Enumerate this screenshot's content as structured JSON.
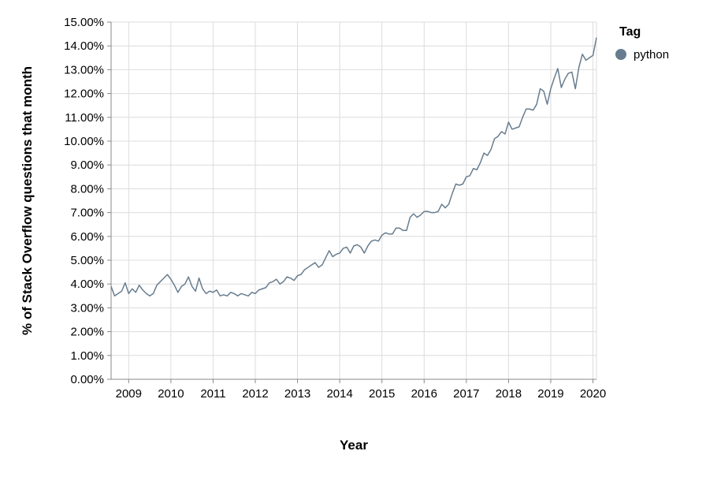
{
  "chart_data": {
    "type": "line",
    "title": "",
    "xlabel": "Year",
    "ylabel": "% of Stack Overflow questions that month",
    "x_ticks": [
      "2009",
      "2010",
      "2011",
      "2012",
      "2013",
      "2014",
      "2015",
      "2016",
      "2017",
      "2018",
      "2019",
      "2020"
    ],
    "y_ticks": [
      "0.00%",
      "1.00%",
      "2.00%",
      "3.00%",
      "4.00%",
      "5.00%",
      "6.00%",
      "7.00%",
      "8.00%",
      "9.00%",
      "10.00%",
      "11.00%",
      "12.00%",
      "13.00%",
      "14.00%",
      "15.00%"
    ],
    "xlim": [
      "2008-08",
      "2020-02"
    ],
    "ylim": [
      0,
      15
    ],
    "grid": true,
    "legend": {
      "title": "Tag",
      "position": "right"
    },
    "series": [
      {
        "name": "python",
        "color": "#677d8f",
        "points": [
          [
            "2008-08",
            3.9
          ],
          [
            "2008-09",
            3.5
          ],
          [
            "2008-10",
            3.6
          ],
          [
            "2008-11",
            3.7
          ],
          [
            "2008-12",
            4.05
          ],
          [
            "2009-01",
            3.6
          ],
          [
            "2009-02",
            3.8
          ],
          [
            "2009-03",
            3.65
          ],
          [
            "2009-04",
            3.95
          ],
          [
            "2009-05",
            3.75
          ],
          [
            "2009-06",
            3.6
          ],
          [
            "2009-07",
            3.5
          ],
          [
            "2009-08",
            3.6
          ],
          [
            "2009-09",
            3.95
          ],
          [
            "2009-10",
            4.1
          ],
          [
            "2009-11",
            4.25
          ],
          [
            "2009-12",
            4.4
          ],
          [
            "2010-01",
            4.2
          ],
          [
            "2010-02",
            3.95
          ],
          [
            "2010-03",
            3.65
          ],
          [
            "2010-04",
            3.9
          ],
          [
            "2010-05",
            4.0
          ],
          [
            "2010-06",
            4.3
          ],
          [
            "2010-07",
            3.9
          ],
          [
            "2010-08",
            3.7
          ],
          [
            "2010-09",
            4.25
          ],
          [
            "2010-10",
            3.8
          ],
          [
            "2010-11",
            3.6
          ],
          [
            "2010-12",
            3.7
          ],
          [
            "2011-01",
            3.65
          ],
          [
            "2011-02",
            3.75
          ],
          [
            "2011-03",
            3.5
          ],
          [
            "2011-04",
            3.55
          ],
          [
            "2011-05",
            3.5
          ],
          [
            "2011-06",
            3.65
          ],
          [
            "2011-07",
            3.6
          ],
          [
            "2011-08",
            3.5
          ],
          [
            "2011-09",
            3.6
          ],
          [
            "2011-10",
            3.55
          ],
          [
            "2011-11",
            3.5
          ],
          [
            "2011-12",
            3.65
          ],
          [
            "2012-01",
            3.6
          ],
          [
            "2012-02",
            3.75
          ],
          [
            "2012-03",
            3.8
          ],
          [
            "2012-04",
            3.85
          ],
          [
            "2012-05",
            4.05
          ],
          [
            "2012-06",
            4.1
          ],
          [
            "2012-07",
            4.2
          ],
          [
            "2012-08",
            4.0
          ],
          [
            "2012-09",
            4.1
          ],
          [
            "2012-10",
            4.3
          ],
          [
            "2012-11",
            4.25
          ],
          [
            "2012-12",
            4.15
          ],
          [
            "2013-01",
            4.35
          ],
          [
            "2013-02",
            4.4
          ],
          [
            "2013-03",
            4.6
          ],
          [
            "2013-04",
            4.7
          ],
          [
            "2013-05",
            4.8
          ],
          [
            "2013-06",
            4.9
          ],
          [
            "2013-07",
            4.7
          ],
          [
            "2013-08",
            4.8
          ],
          [
            "2013-09",
            5.1
          ],
          [
            "2013-10",
            5.4
          ],
          [
            "2013-11",
            5.15
          ],
          [
            "2013-12",
            5.25
          ],
          [
            "2014-01",
            5.3
          ],
          [
            "2014-02",
            5.5
          ],
          [
            "2014-03",
            5.55
          ],
          [
            "2014-04",
            5.3
          ],
          [
            "2014-05",
            5.6
          ],
          [
            "2014-06",
            5.65
          ],
          [
            "2014-07",
            5.55
          ],
          [
            "2014-08",
            5.3
          ],
          [
            "2014-09",
            5.6
          ],
          [
            "2014-10",
            5.8
          ],
          [
            "2014-11",
            5.85
          ],
          [
            "2014-12",
            5.8
          ],
          [
            "2015-01",
            6.05
          ],
          [
            "2015-02",
            6.15
          ],
          [
            "2015-03",
            6.1
          ],
          [
            "2015-04",
            6.1
          ],
          [
            "2015-05",
            6.35
          ],
          [
            "2015-06",
            6.35
          ],
          [
            "2015-07",
            6.25
          ],
          [
            "2015-08",
            6.25
          ],
          [
            "2015-09",
            6.8
          ],
          [
            "2015-10",
            6.95
          ],
          [
            "2015-11",
            6.8
          ],
          [
            "2015-12",
            6.9
          ],
          [
            "2016-01",
            7.05
          ],
          [
            "2016-02",
            7.05
          ],
          [
            "2016-03",
            7.0
          ],
          [
            "2016-04",
            7.0
          ],
          [
            "2016-05",
            7.05
          ],
          [
            "2016-06",
            7.35
          ],
          [
            "2016-07",
            7.2
          ],
          [
            "2016-08",
            7.35
          ],
          [
            "2016-09",
            7.8
          ],
          [
            "2016-10",
            8.2
          ],
          [
            "2016-11",
            8.15
          ],
          [
            "2016-12",
            8.2
          ],
          [
            "2017-01",
            8.5
          ],
          [
            "2017-02",
            8.55
          ],
          [
            "2017-03",
            8.85
          ],
          [
            "2017-04",
            8.8
          ],
          [
            "2017-05",
            9.1
          ],
          [
            "2017-06",
            9.5
          ],
          [
            "2017-07",
            9.4
          ],
          [
            "2017-08",
            9.65
          ],
          [
            "2017-09",
            10.1
          ],
          [
            "2017-10",
            10.2
          ],
          [
            "2017-11",
            10.4
          ],
          [
            "2017-12",
            10.3
          ],
          [
            "2018-01",
            10.8
          ],
          [
            "2018-02",
            10.5
          ],
          [
            "2018-03",
            10.55
          ],
          [
            "2018-04",
            10.6
          ],
          [
            "2018-05",
            11.0
          ],
          [
            "2018-06",
            11.35
          ],
          [
            "2018-07",
            11.35
          ],
          [
            "2018-08",
            11.3
          ],
          [
            "2018-09",
            11.55
          ],
          [
            "2018-10",
            12.2
          ],
          [
            "2018-11",
            12.1
          ],
          [
            "2018-12",
            11.55
          ],
          [
            "2019-01",
            12.2
          ],
          [
            "2019-02",
            12.65
          ],
          [
            "2019-03",
            13.05
          ],
          [
            "2019-04",
            12.25
          ],
          [
            "2019-05",
            12.6
          ],
          [
            "2019-06",
            12.85
          ],
          [
            "2019-07",
            12.9
          ],
          [
            "2019-08",
            12.2
          ],
          [
            "2019-09",
            13.1
          ],
          [
            "2019-10",
            13.65
          ],
          [
            "2019-11",
            13.4
          ],
          [
            "2019-12",
            13.5
          ],
          [
            "2020-01",
            13.6
          ],
          [
            "2020-02",
            14.35
          ]
        ]
      }
    ]
  }
}
